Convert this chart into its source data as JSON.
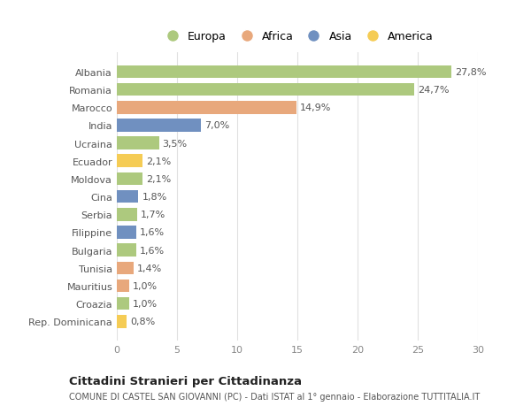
{
  "countries": [
    "Albania",
    "Romania",
    "Marocco",
    "India",
    "Ucraina",
    "Ecuador",
    "Moldova",
    "Cina",
    "Serbia",
    "Filippine",
    "Bulgaria",
    "Tunisia",
    "Mauritius",
    "Croazia",
    "Rep. Dominicana"
  ],
  "values": [
    27.8,
    24.7,
    14.9,
    7.0,
    3.5,
    2.1,
    2.1,
    1.8,
    1.7,
    1.6,
    1.6,
    1.4,
    1.0,
    1.0,
    0.8
  ],
  "labels": [
    "27,8%",
    "24,7%",
    "14,9%",
    "7,0%",
    "3,5%",
    "2,1%",
    "2,1%",
    "1,8%",
    "1,7%",
    "1,6%",
    "1,6%",
    "1,4%",
    "1,0%",
    "1,0%",
    "0,8%"
  ],
  "continents": [
    "Europa",
    "Europa",
    "Africa",
    "Asia",
    "Europa",
    "America",
    "Europa",
    "Asia",
    "Europa",
    "Asia",
    "Europa",
    "Africa",
    "Africa",
    "Europa",
    "America"
  ],
  "colors": {
    "Europa": "#adc97e",
    "Africa": "#e8a87c",
    "Asia": "#7090c0",
    "America": "#f5cc55"
  },
  "legend_order": [
    "Europa",
    "Africa",
    "Asia",
    "America"
  ],
  "xlim": [
    0,
    30
  ],
  "xticks": [
    0,
    5,
    10,
    15,
    20,
    25,
    30
  ],
  "background_color": "#ffffff",
  "grid_color": "#e0e0e0",
  "title": "Cittadini Stranieri per Cittadinanza",
  "subtitle": "COMUNE DI CASTEL SAN GIOVANNI (PC) - Dati ISTAT al 1° gennaio - Elaborazione TUTTITALIA.IT",
  "bar_height": 0.72,
  "label_fontsize": 8,
  "tick_fontsize": 8,
  "legend_fontsize": 9
}
